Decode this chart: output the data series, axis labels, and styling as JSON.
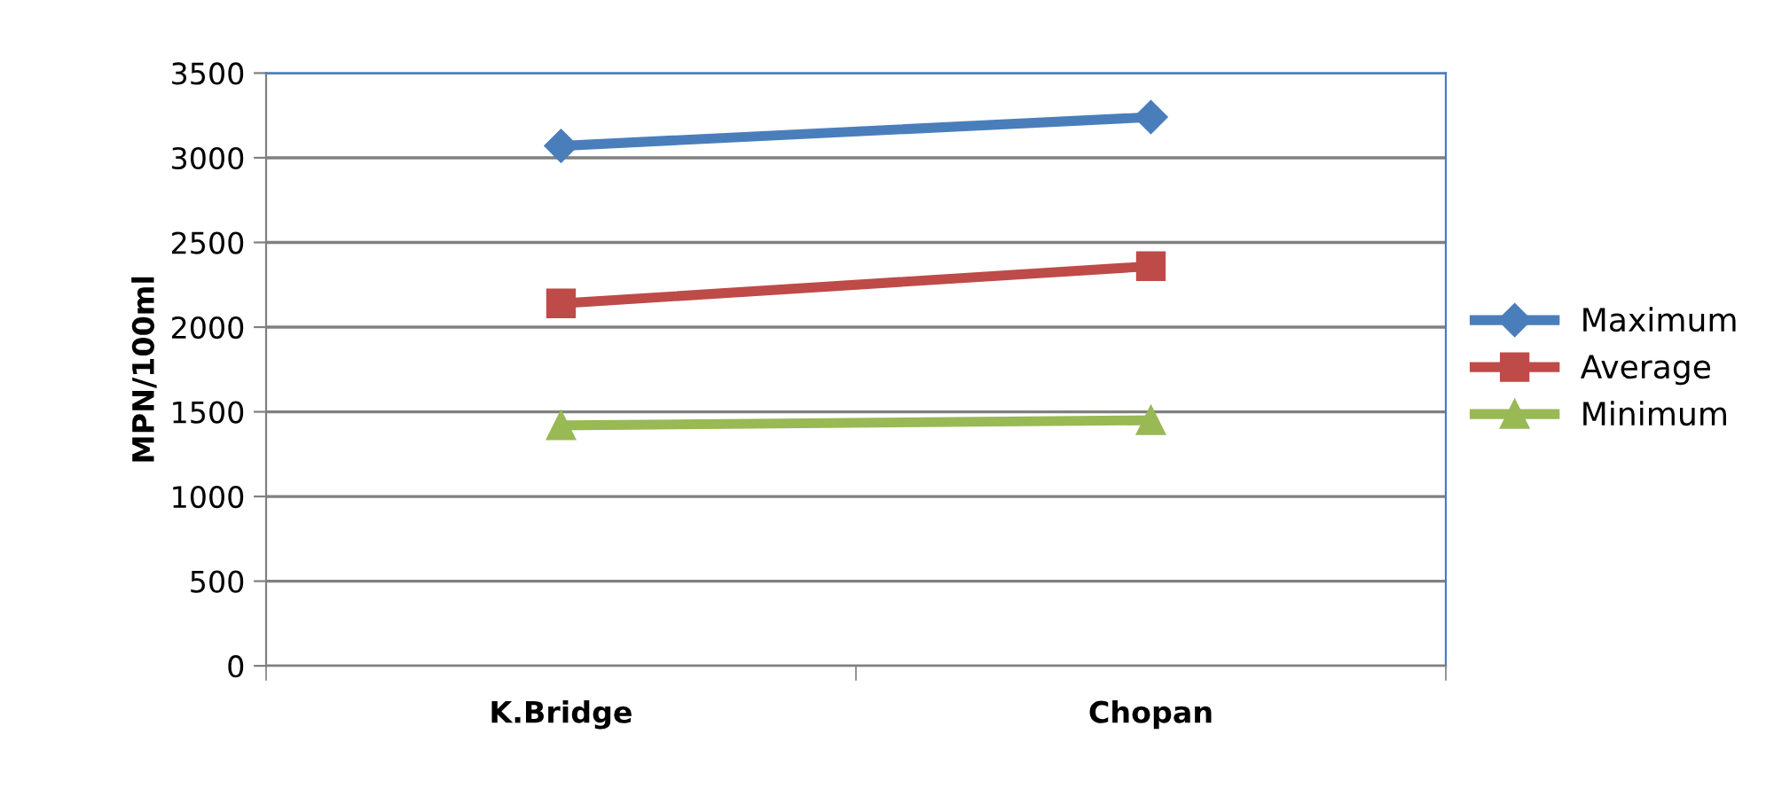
{
  "chart_data": {
    "type": "line",
    "ylabel": "MPN/100ml",
    "categories": [
      "K.Bridge",
      "Chopan"
    ],
    "series": [
      {
        "name": "Maximum",
        "color": "#4a7ebb",
        "marker": "diamond",
        "values": [
          3070,
          3240
        ]
      },
      {
        "name": "Average",
        "color": "#be4b48",
        "marker": "square",
        "values": [
          2140,
          2360
        ]
      },
      {
        "name": "Minimum",
        "color": "#98b954",
        "marker": "triangle",
        "values": [
          1420,
          1450
        ]
      }
    ],
    "ylim": [
      0,
      3500
    ],
    "yticks": [
      0,
      500,
      1000,
      1500,
      2000,
      2500,
      3000,
      3500
    ],
    "grid": "y",
    "legend": "right",
    "line_style": "solid"
  }
}
